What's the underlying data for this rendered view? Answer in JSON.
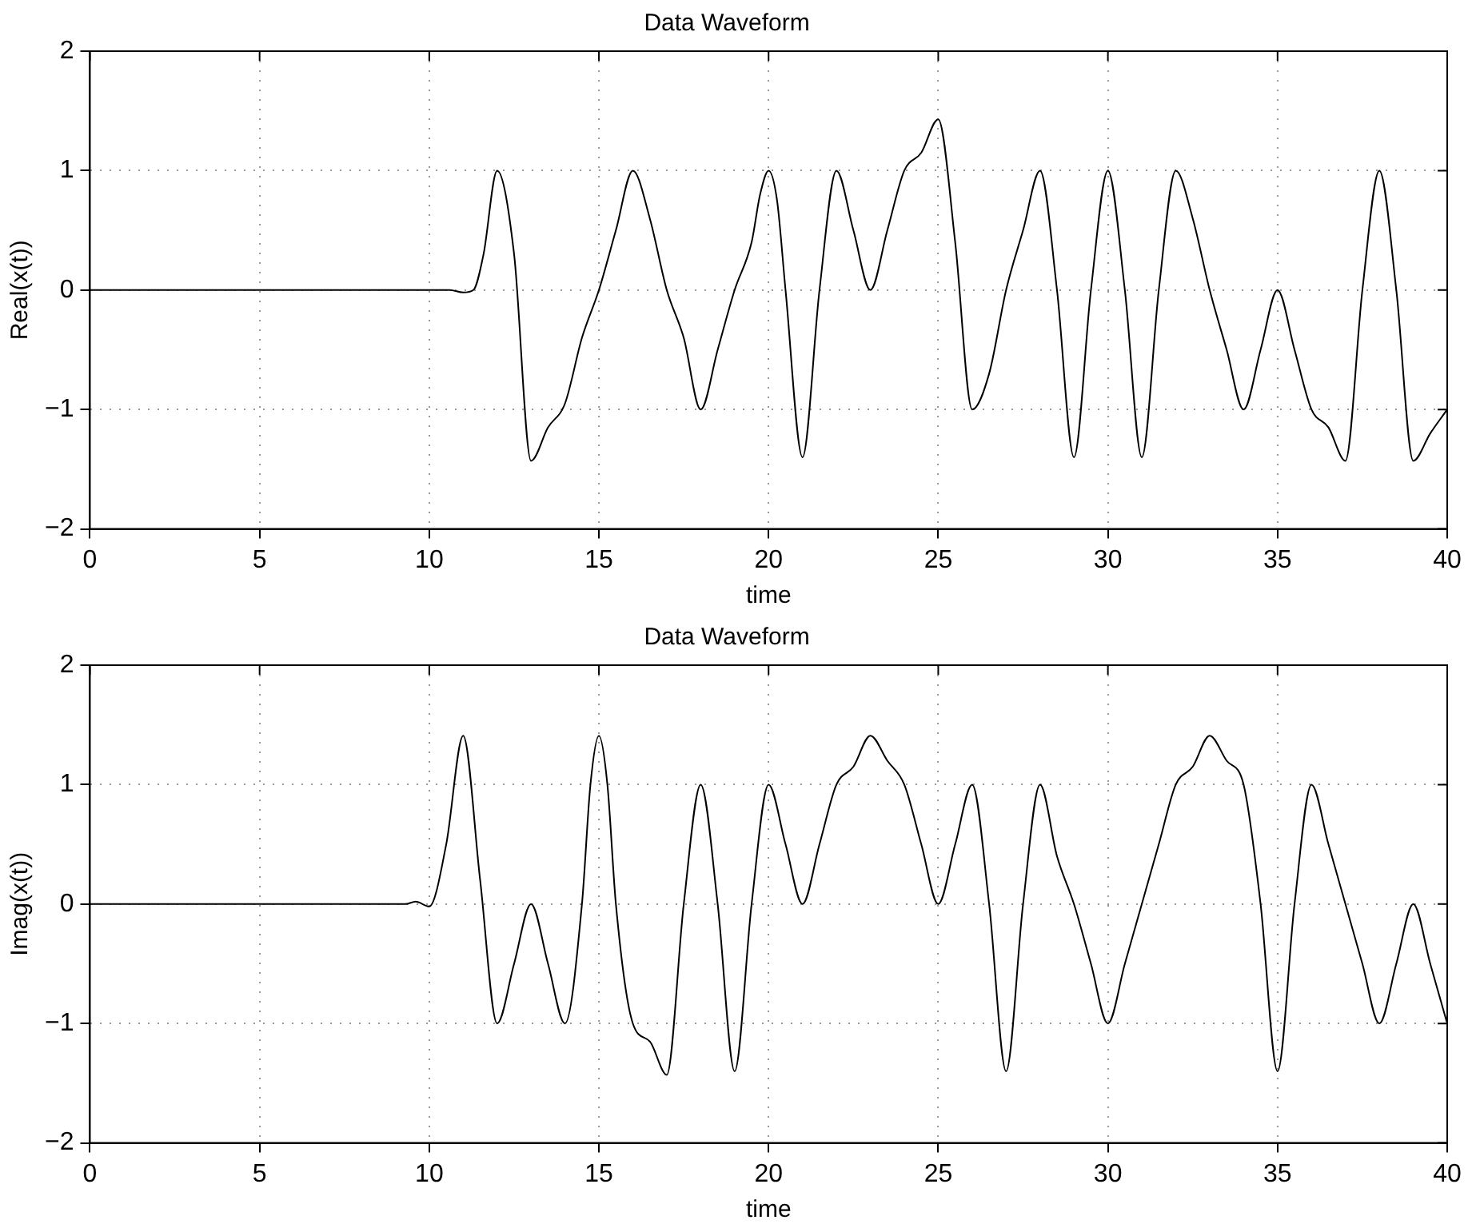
{
  "chart_data": [
    {
      "type": "line",
      "title": "Data Waveform",
      "xlabel": "time",
      "ylabel": "Real(x(t))",
      "xlim": [
        0,
        40
      ],
      "xticks": [
        0,
        5,
        10,
        15,
        20,
        25,
        30,
        35,
        40
      ],
      "ylim": [
        -2,
        2
      ],
      "yticks": [
        -2,
        -1,
        0,
        1,
        2
      ],
      "grid": true,
      "legend": false,
      "marker": "none",
      "line_style": "solid",
      "series": [
        {
          "color": "#000000",
          "x": [
            0,
            5,
            10,
            10.6,
            11,
            11.3,
            11.6,
            12,
            12.5,
            13,
            13.5,
            14,
            14.5,
            15,
            15.5,
            16,
            16.5,
            17,
            17.5,
            18,
            18.5,
            19,
            19.5,
            19.75,
            20,
            20.25,
            20.5,
            21,
            21.5,
            22,
            22.5,
            23,
            23.5,
            24,
            24.5,
            25,
            25.5,
            26,
            26.5,
            27,
            27.5,
            28,
            28.5,
            29,
            29.5,
            30,
            30.5,
            31,
            31.5,
            32,
            32.5,
            33,
            33.5,
            34,
            34.5,
            35,
            35.5,
            36,
            36.5,
            37,
            37.5,
            38,
            38.5,
            39,
            39.5,
            40
          ],
          "values": [
            0,
            0,
            0,
            0,
            -0.02,
            0,
            0.3,
            1,
            0.3,
            -1.43,
            -1.15,
            -0.95,
            -0.4,
            0,
            0.5,
            1,
            0.6,
            0,
            -0.4,
            -1,
            -0.5,
            0,
            0.4,
            0.8,
            1,
            0.75,
            0,
            -1.4,
            0,
            1,
            0.5,
            0,
            0.5,
            1,
            1.15,
            1.43,
            0.4,
            -1,
            -0.7,
            0,
            0.5,
            1,
            0,
            -1.4,
            0,
            1,
            0,
            -1.4,
            0,
            1,
            0.6,
            0,
            -0.5,
            -1,
            -0.5,
            0,
            -0.5,
            -1,
            -1.15,
            -1.43,
            0,
            1,
            0,
            -1.43,
            -1.2,
            -1
          ]
        }
      ]
    },
    {
      "type": "line",
      "title": "Data Waveform",
      "xlabel": "time",
      "ylabel": "Imag(x(t))",
      "xlim": [
        0,
        40
      ],
      "xticks": [
        0,
        5,
        10,
        15,
        20,
        25,
        30,
        35,
        40
      ],
      "ylim": [
        -2,
        2
      ],
      "yticks": [
        -2,
        -1,
        0,
        1,
        2
      ],
      "grid": true,
      "legend": false,
      "marker": "none",
      "line_style": "solid",
      "series": [
        {
          "color": "#000000",
          "x": [
            0,
            5,
            9.3,
            9.6,
            10,
            10.5,
            11,
            11.5,
            12,
            12.5,
            13,
            13.5,
            14,
            14.5,
            14.75,
            15,
            15.25,
            15.5,
            16,
            16.5,
            17,
            17.5,
            18,
            18.5,
            19,
            19.5,
            20,
            20.5,
            21,
            21.5,
            22,
            22.5,
            23,
            23.5,
            24,
            24.5,
            25,
            25.5,
            26,
            26.5,
            27,
            27.5,
            28,
            28.5,
            29,
            29.5,
            30,
            30.5,
            31,
            31.5,
            32,
            32.5,
            33,
            33.5,
            34,
            34.5,
            35,
            35.5,
            36,
            36.5,
            37,
            37.5,
            38,
            38.5,
            39,
            39.5,
            40
          ],
          "values": [
            0,
            0,
            0,
            0.02,
            -0.02,
            0.5,
            1.41,
            0.2,
            -1,
            -0.5,
            0,
            -0.5,
            -1,
            0,
            1.0,
            1.41,
            1.0,
            0,
            -1,
            -1.15,
            -1.43,
            0,
            1,
            0,
            -1.4,
            0,
            1,
            0.5,
            0,
            0.5,
            1,
            1.15,
            1.41,
            1.2,
            1,
            0.5,
            0,
            0.5,
            1,
            0,
            -1.4,
            0,
            1,
            0.4,
            0,
            -0.5,
            -1,
            -0.5,
            0,
            0.5,
            1,
            1.15,
            1.41,
            1.2,
            1,
            0,
            -1.4,
            0,
            1,
            0.5,
            0,
            -0.5,
            -1,
            -0.5,
            0,
            -0.5,
            -1
          ]
        }
      ]
    }
  ]
}
